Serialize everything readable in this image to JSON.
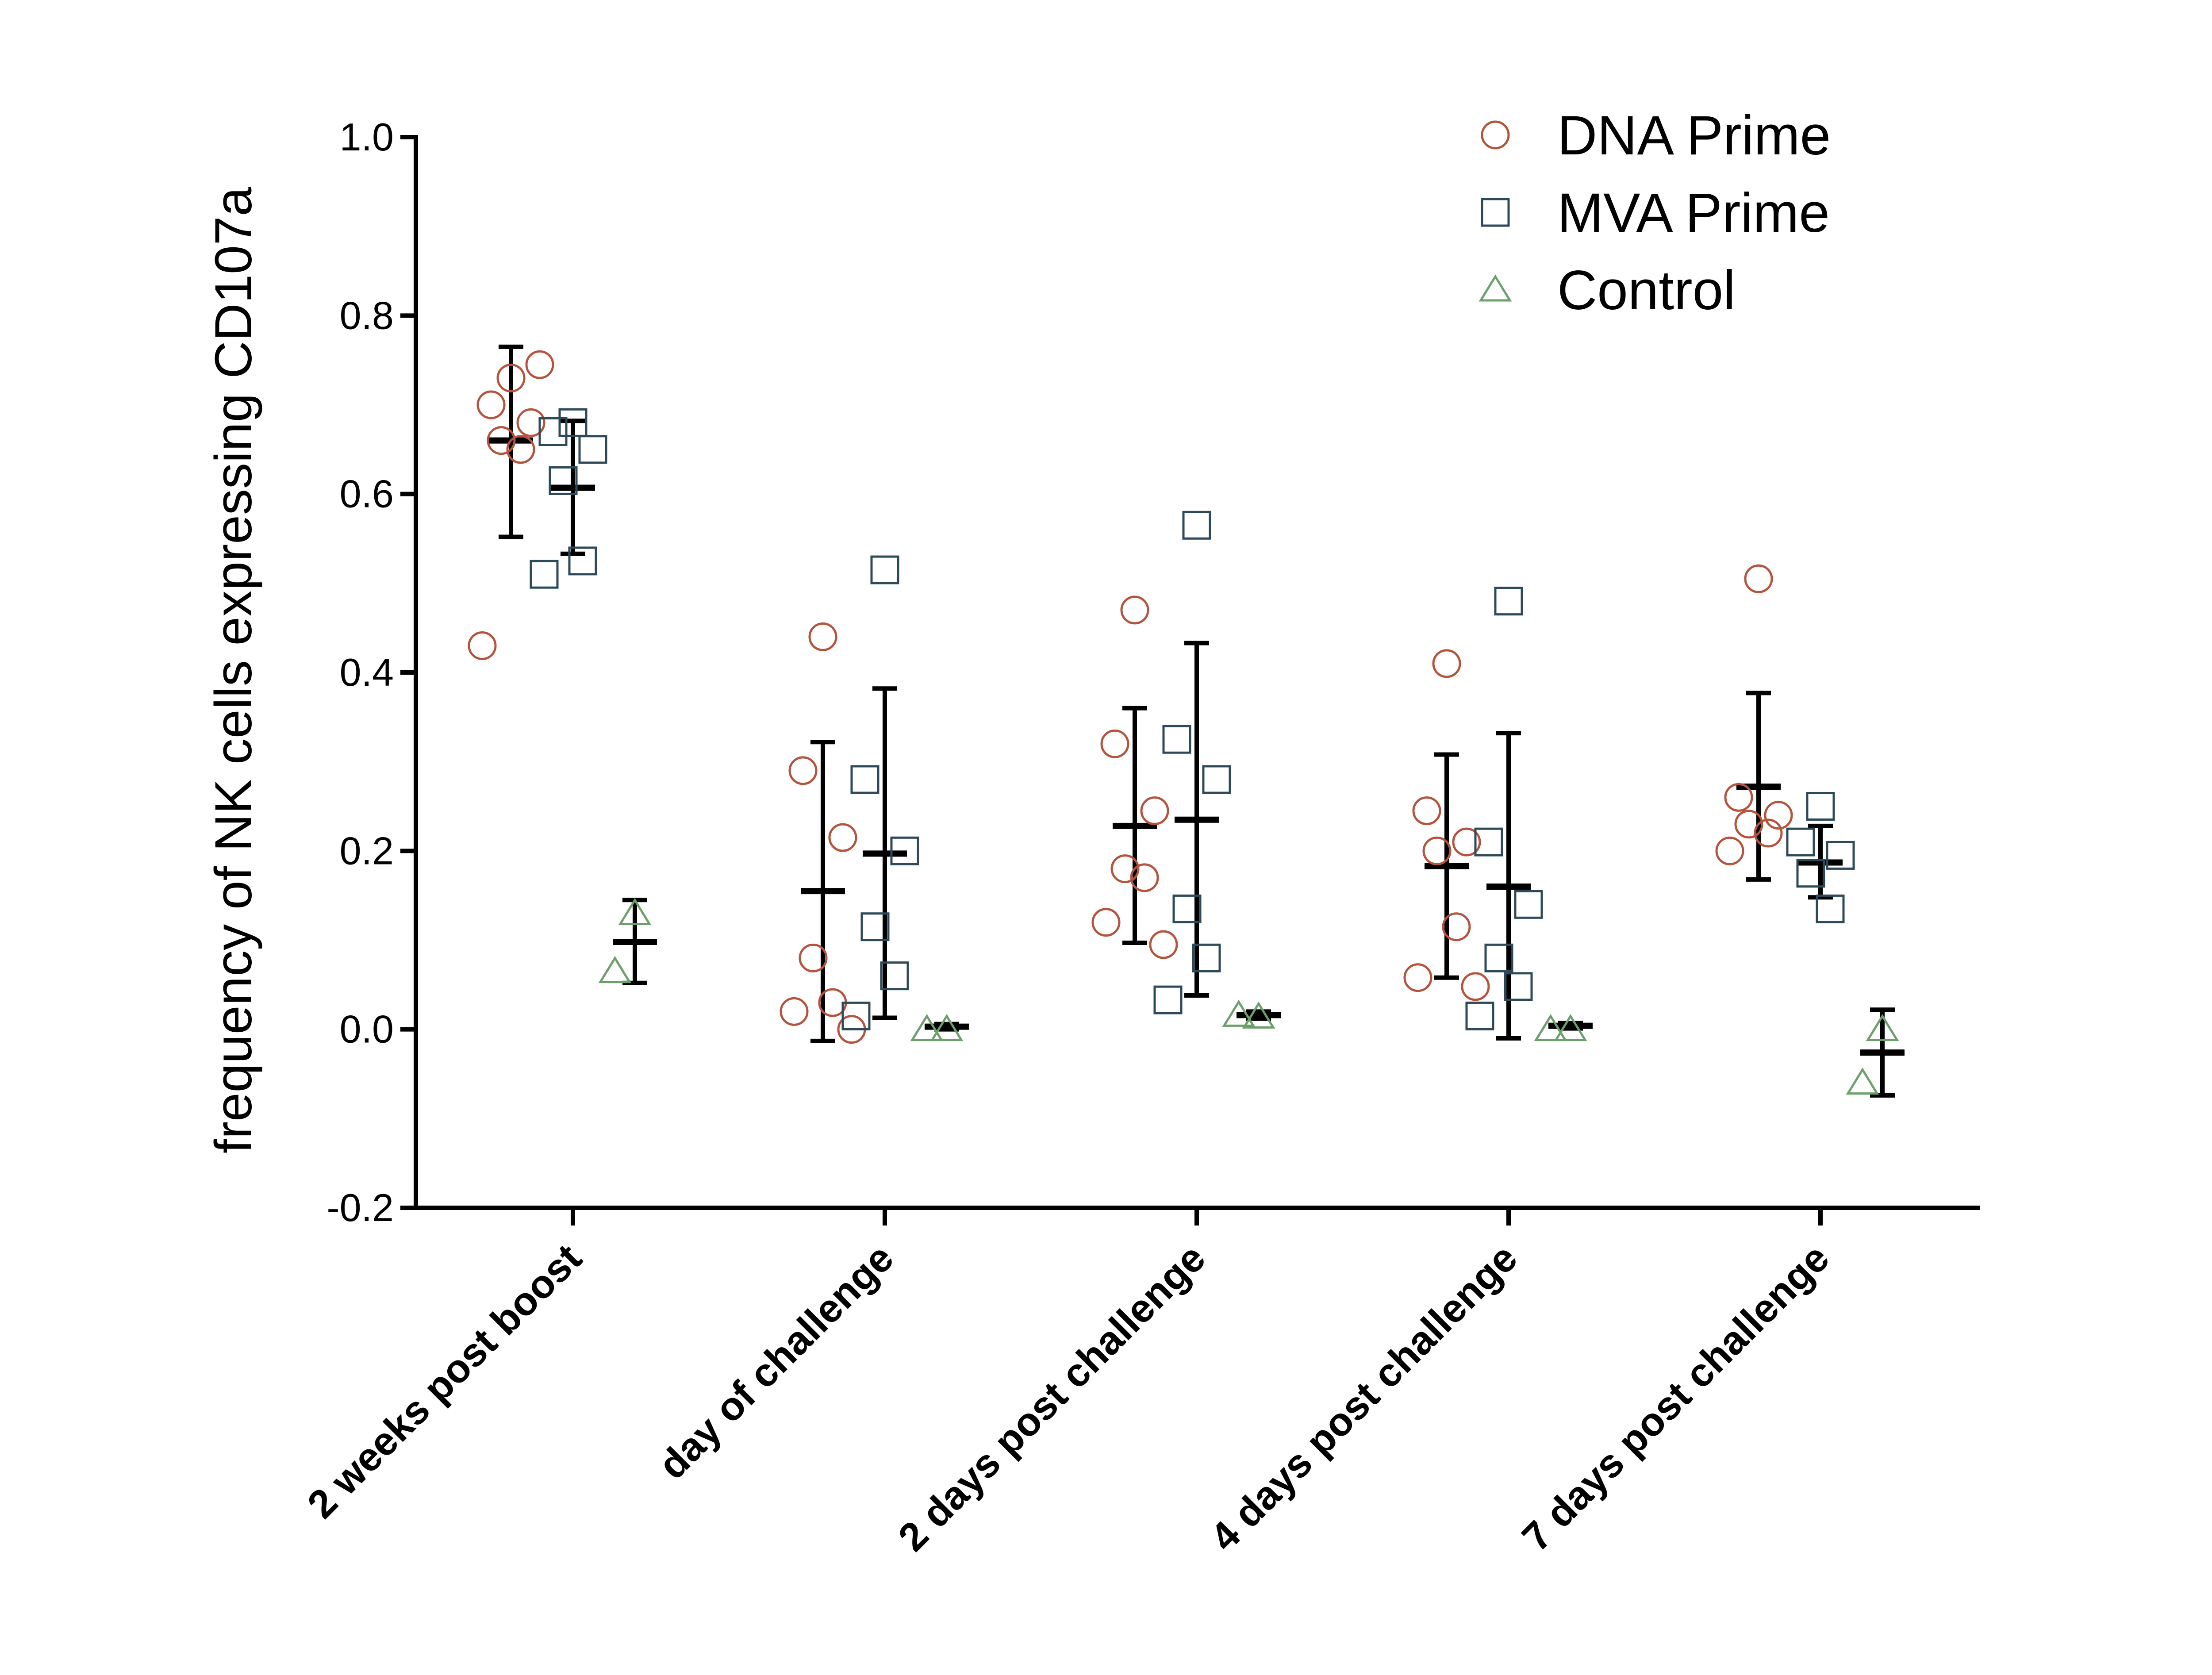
{
  "chart_data": {
    "type": "scatter",
    "ylabel": "frequency of NK cells expressing CD107a",
    "xlabel": "",
    "ylim": [
      -0.2,
      1.0
    ],
    "yticks": [
      "1.0",
      "0.8",
      "0.6",
      "0.4",
      "0.2",
      "0.0",
      "-0.2"
    ],
    "ytick_values": [
      1.0,
      0.8,
      0.6,
      0.4,
      0.2,
      0.0,
      -0.2
    ],
    "categories": [
      "2 weeks post boost",
      "day of challenge",
      "2 days post challenge",
      "4 days post challenge",
      "7 days post challenge"
    ],
    "grid": false,
    "legend_position": "top-right",
    "series": [
      {
        "name": "DNA Prime",
        "marker": "circle",
        "color": "#B5533C",
        "points": [
          [
            0.73,
            0.7,
            0.68,
            0.66,
            0.65,
            0.43,
            0.745
          ],
          [
            0.44,
            0.29,
            0.215,
            0.08,
            0.03,
            0.02,
            0.0
          ],
          [
            0.47,
            0.32,
            0.245,
            0.18,
            0.17,
            0.12,
            0.095
          ],
          [
            0.41,
            0.245,
            0.21,
            0.2,
            0.115,
            0.058,
            0.048
          ],
          [
            0.505,
            0.26,
            0.24,
            0.23,
            0.22,
            0.2
          ]
        ],
        "mean": [
          0.66,
          0.155,
          0.228,
          0.183,
          0.272
        ],
        "error": [
          [
            0.552,
            0.765
          ],
          [
            -0.013,
            0.322
          ],
          [
            0.097,
            0.36
          ],
          [
            0.058,
            0.308
          ],
          [
            0.168,
            0.377
          ]
        ]
      },
      {
        "name": "MVA Prime",
        "marker": "square",
        "color": "#2C4A5A",
        "points": [
          [
            0.68,
            0.67,
            0.65,
            0.615,
            0.525,
            0.51
          ],
          [
            0.515,
            0.28,
            0.2,
            0.115,
            0.06,
            0.015
          ],
          [
            0.565,
            0.325,
            0.28,
            0.135,
            0.08,
            0.033
          ],
          [
            0.48,
            0.21,
            0.14,
            0.08,
            0.048,
            0.015
          ],
          [
            0.25,
            0.21,
            0.195,
            0.175,
            0.135
          ]
        ],
        "mean": [
          0.607,
          0.197,
          0.235,
          0.16,
          0.187
        ],
        "error": [
          [
            0.533,
            0.682
          ],
          [
            0.013,
            0.382
          ],
          [
            0.038,
            0.433
          ],
          [
            -0.01,
            0.332
          ],
          [
            0.148,
            0.228
          ]
        ]
      },
      {
        "name": "Control",
        "marker": "triangle",
        "color": "#6BA06B",
        "points": [
          [
            0.13,
            0.065
          ],
          [
            0.0,
            0.0
          ],
          [
            0.014,
            0.016
          ],
          [
            0.0,
            0.0
          ],
          [
            0.0,
            -0.06
          ]
        ],
        "mean": [
          0.098,
          0.003,
          0.016,
          0.004,
          -0.026
        ],
        "error": [
          [
            0.052,
            0.145
          ],
          [
            0.0,
            0.006
          ],
          [
            0.012,
            0.02
          ],
          [
            0.001,
            0.007
          ],
          [
            -0.074,
            0.022
          ]
        ]
      }
    ]
  }
}
